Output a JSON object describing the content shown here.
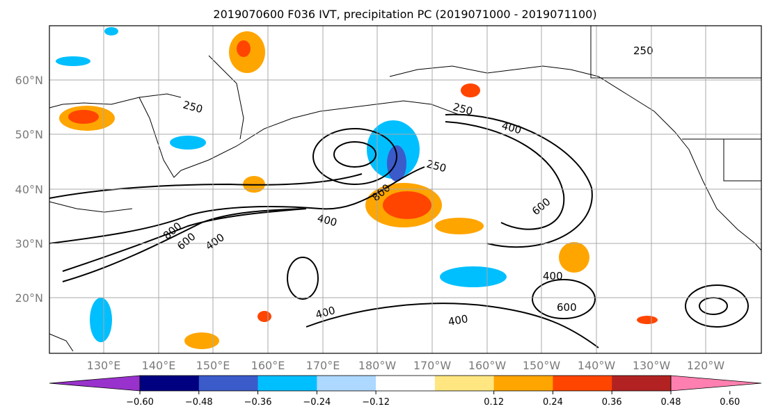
{
  "title": "2019070600 F036 IVT, precipitation PC (2019071000 - 2019071100)",
  "map": {
    "lat_labels": [
      "60°N",
      "50°N",
      "40°N",
      "30°N",
      "20°N"
    ],
    "lon_labels": [
      "130°E",
      "140°E",
      "150°E",
      "160°E",
      "170°E",
      "180°W",
      "170°W",
      "160°W",
      "150°W",
      "140°W",
      "130°W",
      "120°W"
    ],
    "contour_labels": [
      "250",
      "400",
      "600",
      "800"
    ],
    "contour_color": "#000000",
    "grid_color": "#a9a9a9"
  },
  "colorbar": {
    "colors": [
      "#9932cc",
      "#000080",
      "#3a5bc9",
      "#00bfff",
      "#add8ff",
      "#ffffff",
      "#ffe680",
      "#ffa500",
      "#ff4500",
      "#b22222",
      "#ff80b0"
    ],
    "tick_labels": [
      "−0.60",
      "−0.48",
      "−0.36",
      "−0.24",
      "−0.12",
      "0.12",
      "0.24",
      "0.36",
      "0.48",
      "0.60"
    ]
  }
}
